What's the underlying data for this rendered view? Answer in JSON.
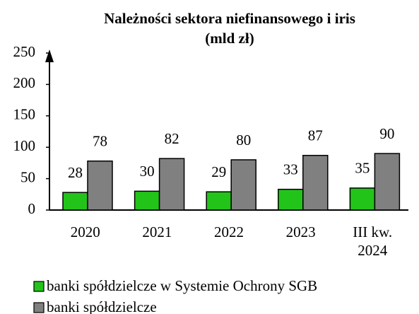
{
  "chart_data": {
    "type": "bar",
    "title": [
      "Należności sektora niefinansowego i iris",
      "(mld zł)"
    ],
    "categories": [
      "2020",
      "2021",
      "2022",
      "2023",
      "III kw. 2024"
    ],
    "series": [
      {
        "name": "banki spółdzielcze w Systemie Ochrony SGB",
        "color": "#22c41a",
        "values": [
          28,
          30,
          29,
          33,
          35
        ]
      },
      {
        "name": "banki spółdzielcze",
        "color": "#808080",
        "values": [
          78,
          82,
          80,
          87,
          90
        ]
      }
    ],
    "ylim": [
      0,
      250
    ],
    "yticks": [
      0,
      50,
      100,
      150,
      200,
      250
    ],
    "grid": false,
    "legend": "bottom"
  }
}
